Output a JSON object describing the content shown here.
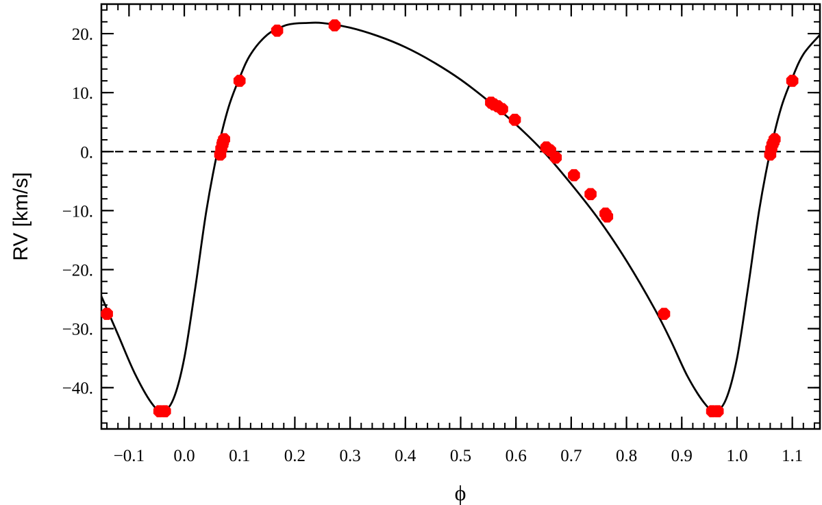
{
  "chart_data": {
    "type": "scatter",
    "title": "",
    "xlabel": "ϕ",
    "ylabel": "RV [km/s]",
    "xlim": [
      -0.15,
      1.15
    ],
    "ylim": [
      -47,
      25
    ],
    "x_ticks": [
      -0.1,
      0.0,
      0.1,
      0.2,
      0.3,
      0.4,
      0.5,
      0.6,
      0.7,
      0.8,
      0.9,
      1.0,
      1.1
    ],
    "x_tick_labels": [
      "−0.1",
      "0.0",
      "0.1",
      "0.2",
      "0.3",
      "0.4",
      "0.5",
      "0.6",
      "0.7",
      "0.8",
      "0.9",
      "1.0",
      "1.1"
    ],
    "y_ticks": [
      20,
      10,
      0,
      -10,
      -20,
      -30,
      -40
    ],
    "y_tick_labels": [
      "20.",
      "10.",
      "0.",
      "−10.",
      "−20.",
      "−30.",
      "−40."
    ],
    "reference_line": {
      "y": 0,
      "style": "dashed",
      "color": "#000000"
    },
    "series": [
      {
        "kind": "points",
        "color": "#ff0000",
        "x": [
          -0.14,
          -0.045,
          -0.035,
          0.065,
          0.067,
          0.069,
          0.07,
          0.072,
          0.1,
          0.168,
          0.272,
          0.555,
          0.56,
          0.567,
          0.575,
          0.598,
          0.655,
          0.662,
          0.672,
          0.705,
          0.735,
          0.762,
          0.765,
          0.868,
          0.955,
          0.965,
          1.06,
          1.062,
          1.064,
          1.066,
          1.068,
          1.1
        ],
        "y": [
          -27.5,
          -44,
          -44,
          -0.5,
          0.5,
          1.2,
          1.6,
          2.1,
          12,
          20.5,
          21.4,
          8.3,
          8.0,
          7.7,
          7.2,
          5.4,
          0.7,
          0.2,
          -1.0,
          -4.0,
          -7.2,
          -10.5,
          -11.0,
          -27.5,
          -44,
          -44,
          -0.5,
          0.5,
          1.2,
          1.6,
          2.1,
          12
        ]
      },
      {
        "kind": "model",
        "color": "#000000",
        "x": [
          -0.15,
          -0.12,
          -0.09,
          -0.06,
          -0.04,
          -0.02,
          0.0,
          0.02,
          0.04,
          0.06,
          0.08,
          0.1,
          0.12,
          0.15,
          0.18,
          0.2,
          0.22,
          0.25,
          0.3,
          0.35,
          0.4,
          0.45,
          0.5,
          0.55,
          0.6,
          0.65,
          0.7,
          0.75,
          0.8,
          0.85,
          0.88,
          0.91,
          0.94,
          0.96,
          0.98,
          1.0,
          1.02,
          1.04,
          1.06,
          1.08,
          1.1,
          1.12,
          1.15
        ],
        "y": [
          -24.5,
          -31,
          -37.5,
          -42.5,
          -44,
          -42,
          -35,
          -23,
          -10,
          0,
          7.5,
          12.5,
          16.5,
          19.8,
          21.3,
          21.7,
          21.8,
          21.8,
          21,
          19.6,
          17.7,
          15.2,
          12.2,
          8.6,
          4.6,
          0,
          -5.5,
          -11.5,
          -18.5,
          -26.5,
          -32,
          -38,
          -42.5,
          -44,
          -42,
          -35,
          -23,
          -10,
          0,
          7.5,
          12.5,
          16.5,
          19.8
        ]
      }
    ]
  }
}
